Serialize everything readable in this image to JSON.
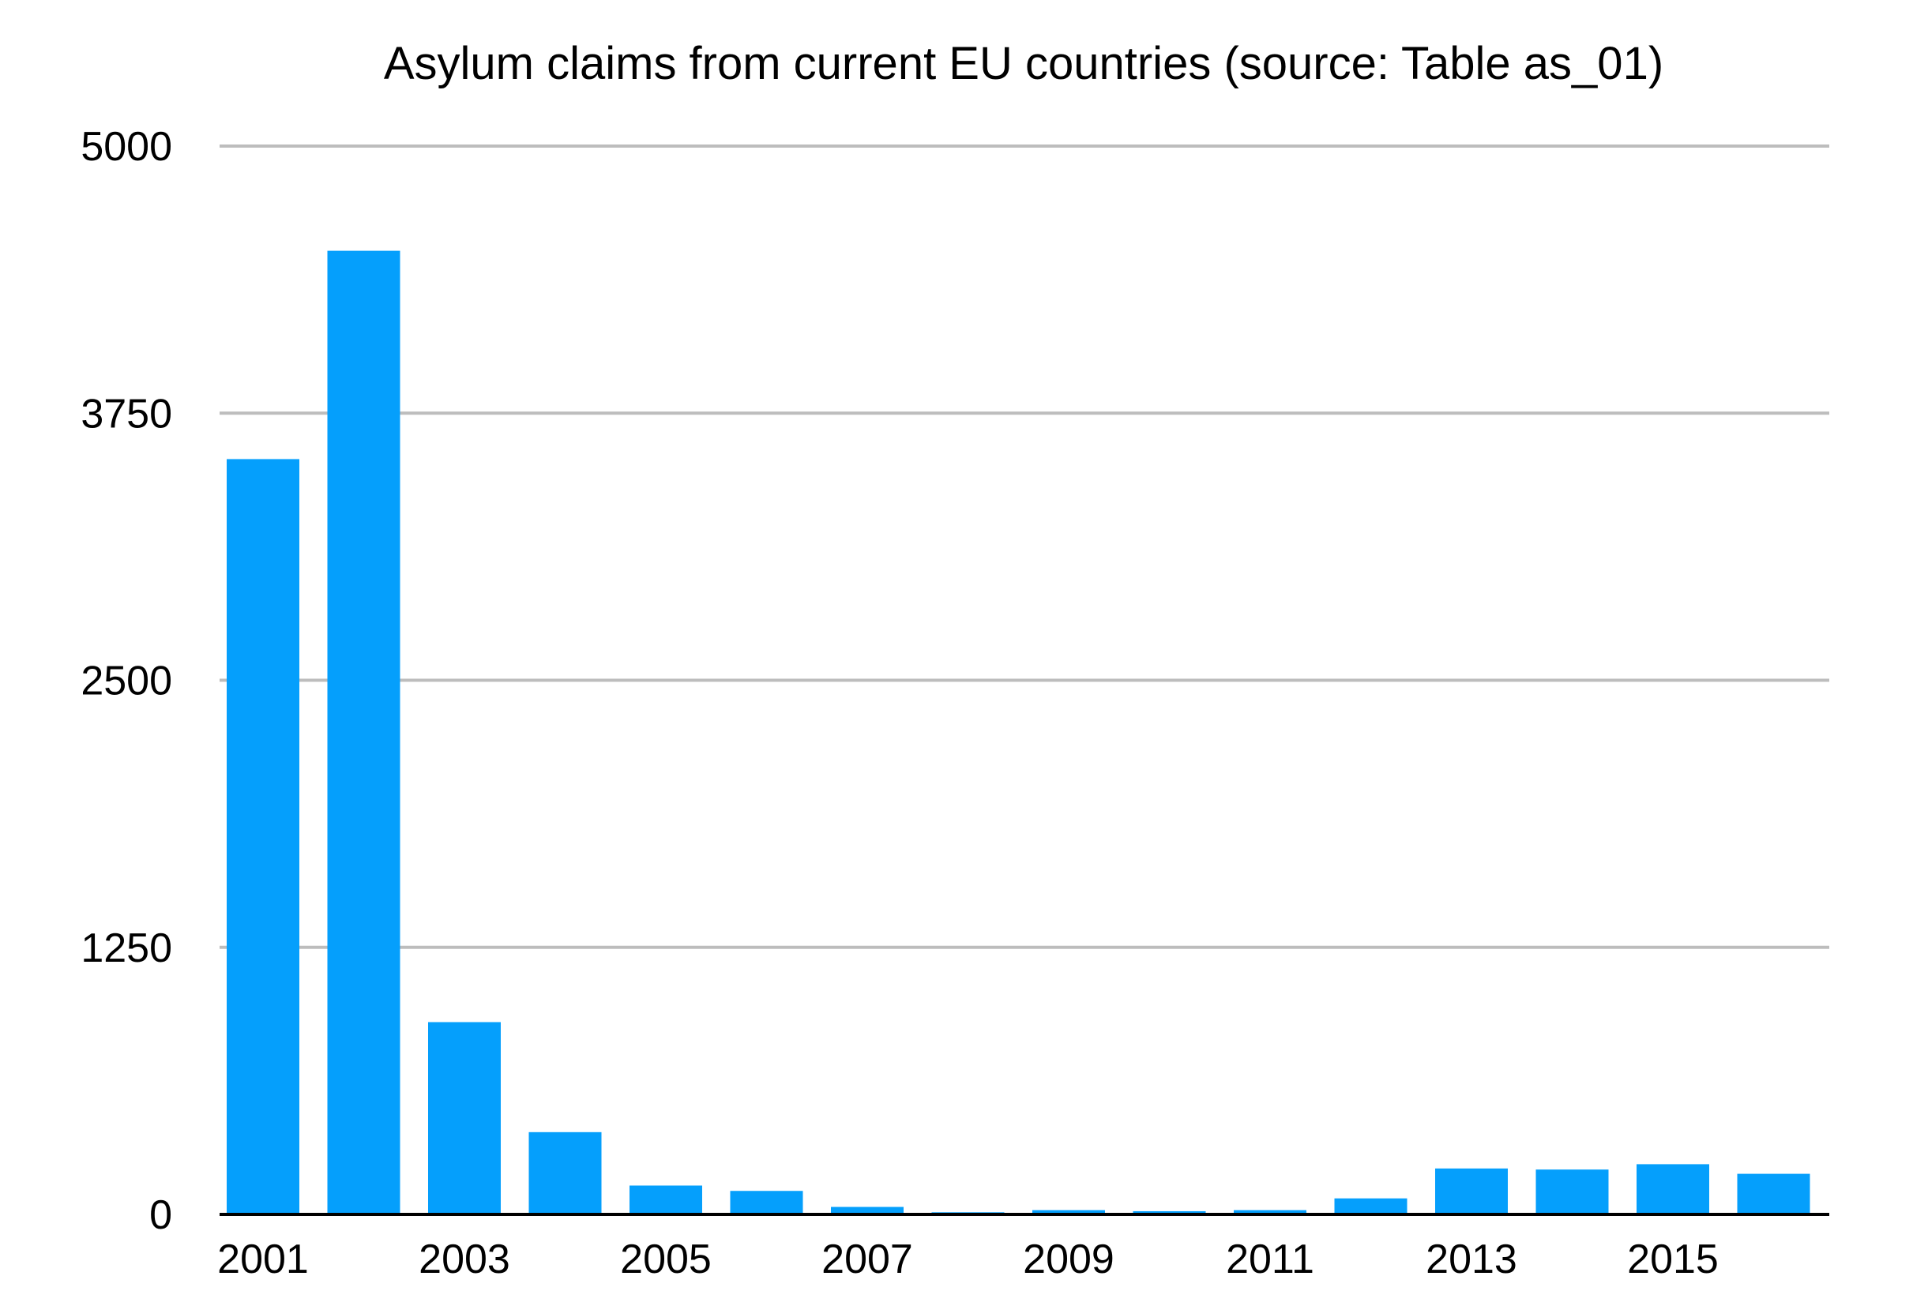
{
  "chart_data": {
    "type": "bar",
    "title": "Asylum claims from current EU countries (source: Table as_01)",
    "xlabel": "",
    "ylabel": "",
    "ylim": [
      0,
      5000
    ],
    "yticks": [
      0,
      1250,
      2500,
      3750,
      5000
    ],
    "grid": true,
    "categories": [
      "2001",
      "2002",
      "2003",
      "2004",
      "2005",
      "2006",
      "2007",
      "2008",
      "2009",
      "2010",
      "2011",
      "2012",
      "2013",
      "2014",
      "2015",
      "2016"
    ],
    "xtick_labels_shown": [
      "2001",
      "2003",
      "2005",
      "2007",
      "2009",
      "2011",
      "2013",
      "2015"
    ],
    "series": [
      {
        "values": [
          3535,
          4510,
          900,
          385,
          135,
          110,
          35,
          10,
          20,
          15,
          20,
          75,
          215,
          210,
          235,
          190
        ]
      }
    ],
    "colors": {
      "bar": "#059ffc",
      "grid": "#bdbdbd",
      "axis": "#000000"
    }
  }
}
